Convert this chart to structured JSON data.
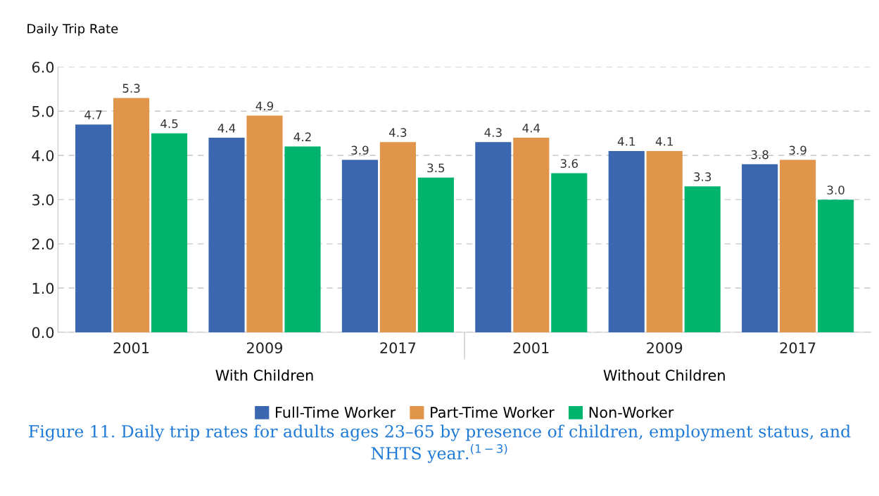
{
  "chart_data": {
    "type": "bar",
    "ylabel": "Daily Trip Rate",
    "categories": [
      "2001",
      "2009",
      "2017",
      "2001",
      "2009",
      "2017"
    ],
    "series": [
      {
        "name": "Full-Time Worker",
        "color": "#3a67b0",
        "values": [
          4.7,
          4.4,
          3.9,
          4.3,
          4.1,
          3.8
        ],
        "value_labels": [
          "4.7",
          "4.4",
          "3.9",
          "4.3",
          "4.1",
          "3.8"
        ]
      },
      {
        "name": "Part-Time Worker",
        "color": "#e0954a",
        "values": [
          5.3,
          4.9,
          4.3,
          4.4,
          4.1,
          3.9
        ],
        "value_labels": [
          "5.3",
          "4.9",
          "4.3",
          "4.4",
          "4.1",
          "3.9"
        ]
      },
      {
        "name": "Non-Worker",
        "color": "#00b46e",
        "values": [
          4.5,
          4.2,
          3.5,
          3.6,
          3.3,
          3.0
        ],
        "value_labels": [
          "4.5",
          "4.2",
          "3.5",
          "3.6",
          "3.3",
          "3.0"
        ]
      }
    ],
    "ylim": [
      0,
      6
    ],
    "yticks": [
      {
        "value": 0,
        "label": "0.0"
      },
      {
        "value": 1,
        "label": "1.0"
      },
      {
        "value": 2,
        "label": "2.0"
      },
      {
        "value": 3,
        "label": "3.0"
      },
      {
        "value": 4,
        "label": "4.0"
      },
      {
        "value": 5,
        "label": "5.0"
      },
      {
        "value": 6,
        "label": "6.0"
      }
    ],
    "grid": "y",
    "legend": "bottom",
    "annotations": [
      "With Children",
      "Without Children",
      "Figure 11. Daily trip rates for adults ages 23–65 by presence of children, employment status, and NHTS year.$^{(1−3)}$"
    ]
  }
}
